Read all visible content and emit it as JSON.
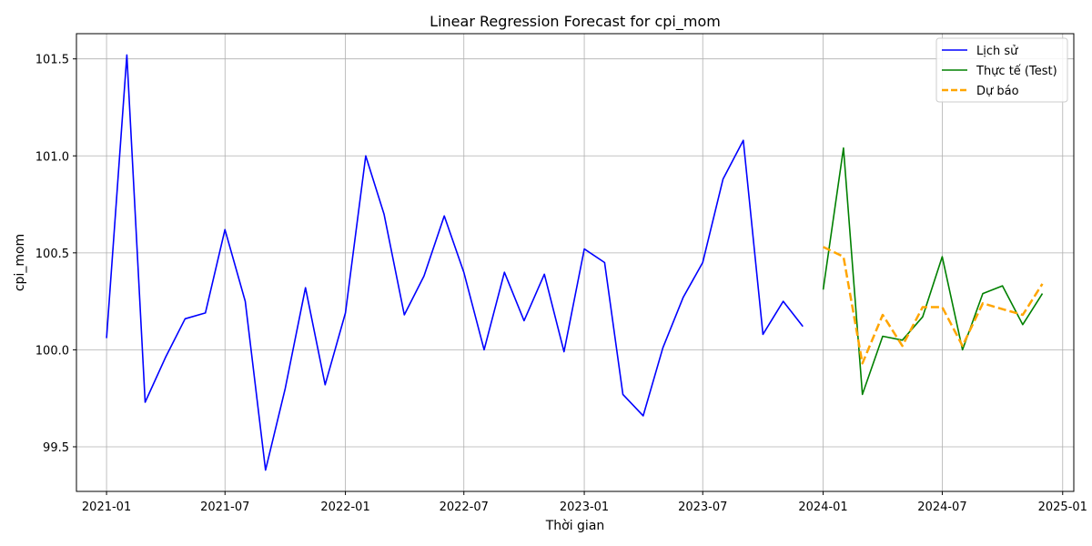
{
  "chart_data": {
    "type": "line",
    "title": "Linear Regression Forecast for cpi_mom",
    "xlabel": "Thời gian",
    "ylabel": "cpi_mom",
    "xlim": [
      "2020-11-16",
      "2025-01-18"
    ],
    "ylim": [
      99.27,
      101.63
    ],
    "grid": true,
    "legend_position": "top-right",
    "x_ticks": [
      {
        "date": "2021-01-01",
        "label": "2021-01"
      },
      {
        "date": "2021-07-01",
        "label": "2021-07"
      },
      {
        "date": "2022-01-01",
        "label": "2022-01"
      },
      {
        "date": "2022-07-01",
        "label": "2022-07"
      },
      {
        "date": "2023-01-01",
        "label": "2023-01"
      },
      {
        "date": "2023-07-01",
        "label": "2023-07"
      },
      {
        "date": "2024-01-01",
        "label": "2024-01"
      },
      {
        "date": "2024-07-01",
        "label": "2024-07"
      },
      {
        "date": "2025-01-01",
        "label": "2025-01"
      }
    ],
    "y_ticks": [
      {
        "value": 99.5,
        "label": "99.5"
      },
      {
        "value": 100.0,
        "label": "100.0"
      },
      {
        "value": 100.5,
        "label": "100.5"
      },
      {
        "value": 101.0,
        "label": "101.0"
      },
      {
        "value": 101.5,
        "label": "101.5"
      }
    ],
    "series": [
      {
        "name": "Lịch sử",
        "color": "#0000ff",
        "style": "solid",
        "x": [
          "2021-01-01",
          "2021-02-01",
          "2021-03-01",
          "2021-04-01",
          "2021-05-01",
          "2021-06-01",
          "2021-07-01",
          "2021-08-01",
          "2021-09-01",
          "2021-10-01",
          "2021-11-01",
          "2021-12-01",
          "2022-01-01",
          "2022-02-01",
          "2022-03-01",
          "2022-04-01",
          "2022-05-01",
          "2022-06-01",
          "2022-07-01",
          "2022-08-01",
          "2022-09-01",
          "2022-10-01",
          "2022-11-01",
          "2022-12-01",
          "2023-01-01",
          "2023-02-01",
          "2023-03-01",
          "2023-04-01",
          "2023-05-01",
          "2023-06-01",
          "2023-07-01",
          "2023-08-01",
          "2023-09-01",
          "2023-10-01",
          "2023-11-01",
          "2023-12-01"
        ],
        "values": [
          100.06,
          101.52,
          99.73,
          99.96,
          100.16,
          100.19,
          100.62,
          100.25,
          99.38,
          99.8,
          100.32,
          99.82,
          100.19,
          101.0,
          100.7,
          100.18,
          100.38,
          100.69,
          100.4,
          100.0,
          100.4,
          100.15,
          100.39,
          99.99,
          100.52,
          100.45,
          99.77,
          99.66,
          100.01,
          100.27,
          100.45,
          100.88,
          101.08,
          100.08,
          100.25,
          100.12
        ]
      },
      {
        "name": "Thực tế (Test)",
        "color": "#008000",
        "style": "solid",
        "x": [
          "2024-01-01",
          "2024-02-01",
          "2024-03-01",
          "2024-04-01",
          "2024-05-01",
          "2024-06-01",
          "2024-07-01",
          "2024-08-01",
          "2024-09-01",
          "2024-10-01",
          "2024-11-01",
          "2024-12-01"
        ],
        "values": [
          100.31,
          101.04,
          99.77,
          100.07,
          100.05,
          100.17,
          100.48,
          100.0,
          100.29,
          100.33,
          100.13,
          100.29
        ]
      },
      {
        "name": "Dự báo",
        "color": "#ffa500",
        "style": "dashed",
        "x": [
          "2024-01-01",
          "2024-02-01",
          "2024-03-01",
          "2024-04-01",
          "2024-05-01",
          "2024-06-01",
          "2024-07-01",
          "2024-08-01",
          "2024-09-01",
          "2024-10-01",
          "2024-11-01",
          "2024-12-01"
        ],
        "values": [
          100.53,
          100.48,
          99.93,
          100.18,
          100.02,
          100.22,
          100.22,
          100.02,
          100.24,
          100.21,
          100.18,
          100.34
        ]
      }
    ]
  }
}
